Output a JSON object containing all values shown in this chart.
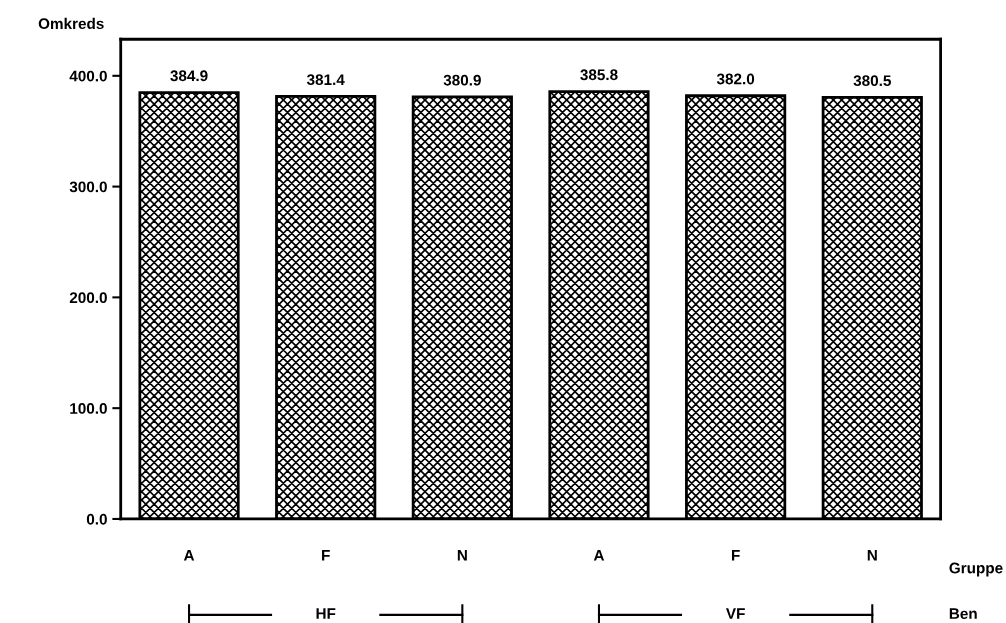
{
  "chart_data": {
    "type": "bar",
    "ylabel": "Omkreds",
    "xlabel": "Gruppe",
    "categories": [
      "A",
      "F",
      "N",
      "A",
      "F",
      "N"
    ],
    "values": [
      384.9,
      381.4,
      380.9,
      385.8,
      382.0,
      380.5
    ],
    "color": "#000000",
    "value_labels": [
      "384.9",
      "381.4",
      "380.9",
      "385.8",
      "382.0",
      "380.5"
    ],
    "ylim": [
      0,
      433
    ],
    "yticks": [
      {
        "value": 0,
        "label": "0.0"
      },
      {
        "value": 100,
        "label": "100.0"
      },
      {
        "value": 200,
        "label": "200.0"
      },
      {
        "value": 300,
        "label": "300.0"
      },
      {
        "value": 400,
        "label": "400.0"
      }
    ],
    "annotations": [
      "HF",
      "VF",
      "Ben"
    ],
    "grid": false
  }
}
